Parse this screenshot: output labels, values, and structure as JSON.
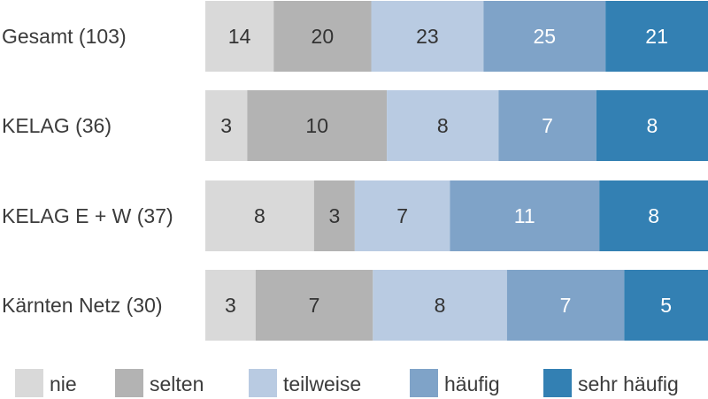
{
  "chart_data": {
    "type": "bar",
    "orientation": "horizontal",
    "stacked": true,
    "normalized": true,
    "categories": [
      "Gesamt (103)",
      "KELAG (36)",
      "KELAG E + W (37)",
      "Kärnten Netz (30)"
    ],
    "series": [
      {
        "name": "nie",
        "color": "#d9d9d9",
        "label_color": "#333333",
        "values": [
          14,
          3,
          8,
          3
        ]
      },
      {
        "name": "selten",
        "color": "#b3b3b3",
        "label_color": "#333333",
        "values": [
          20,
          10,
          3,
          7
        ]
      },
      {
        "name": "teilweise",
        "color": "#b9cbe2",
        "label_color": "#333333",
        "values": [
          23,
          8,
          7,
          8
        ]
      },
      {
        "name": "häufig",
        "color": "#7fa3c8",
        "label_color": "#ffffff",
        "values": [
          25,
          7,
          11,
          7
        ]
      },
      {
        "name": "sehr häufig",
        "color": "#3380b3",
        "label_color": "#ffffff",
        "values": [
          21,
          8,
          8,
          5
        ]
      }
    ],
    "legend_position": "bottom",
    "grid": false
  }
}
